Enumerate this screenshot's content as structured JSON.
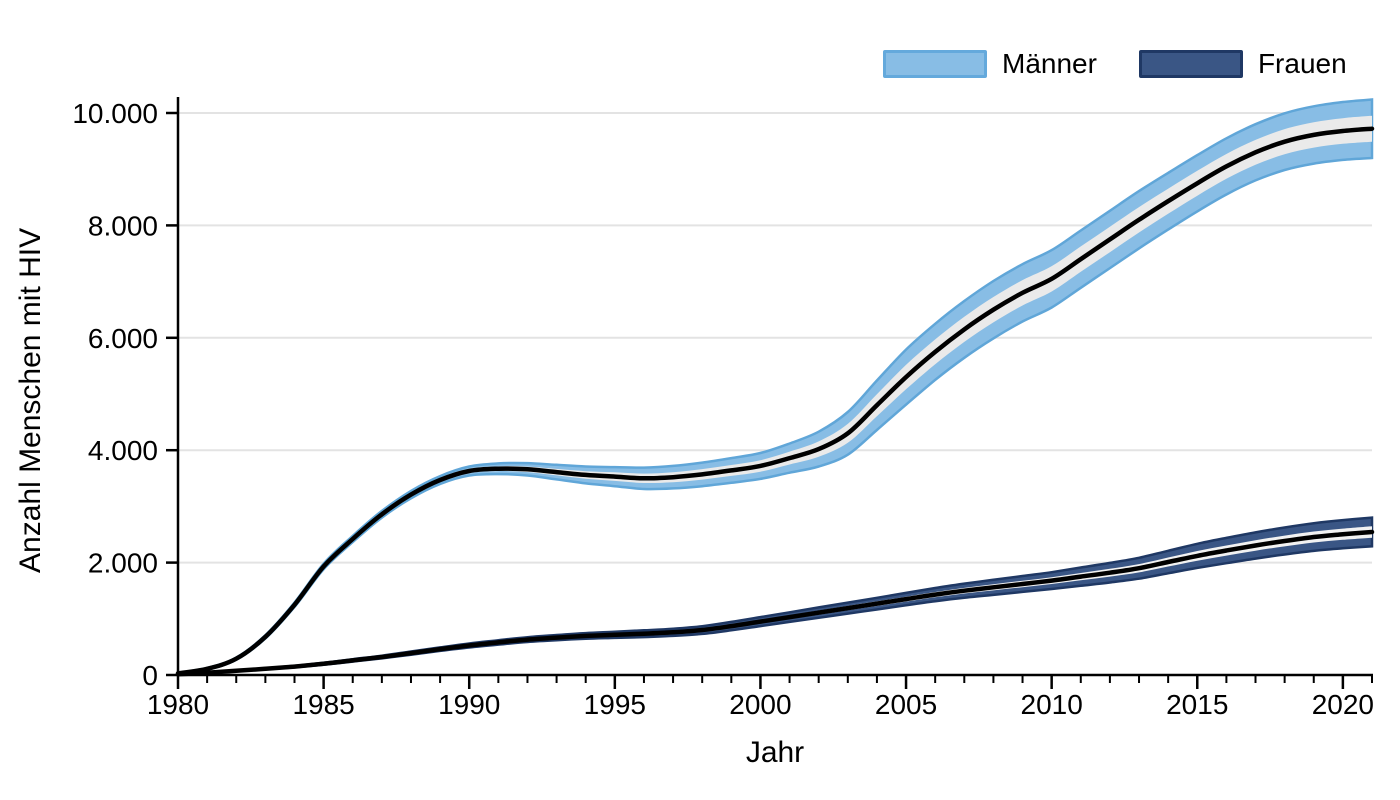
{
  "page": {
    "background": "#FFFFFF",
    "text_color": "#000000",
    "grid_color": "#E3E3E3",
    "axis_color": "#000000"
  },
  "legend": {
    "items": [
      {
        "label": "Männer",
        "fill": "#88BDE5",
        "border": "#64A9DC"
      },
      {
        "label": "Frauen",
        "fill": "#3A5685",
        "border": "#1F3864"
      }
    ]
  },
  "chart_data": {
    "type": "line",
    "title": "",
    "xlabel": "Jahr",
    "ylabel": "Anzahl Menschen mit HIV",
    "xlim": [
      1980,
      2021
    ],
    "ylim": [
      0,
      10000
    ],
    "grid": "horizontal-light",
    "legend_position": "top-right-above-plot",
    "x": [
      1980,
      1981,
      1982,
      1983,
      1984,
      1985,
      1986,
      1987,
      1988,
      1989,
      1990,
      1991,
      1992,
      1993,
      1994,
      1995,
      1996,
      1997,
      1998,
      1999,
      2000,
      2001,
      2002,
      2003,
      2004,
      2005,
      2006,
      2007,
      2008,
      2009,
      2010,
      2011,
      2012,
      2013,
      2014,
      2015,
      2016,
      2017,
      2018,
      2019,
      2020,
      2021
    ],
    "xticks": {
      "major": [
        1980,
        1985,
        1990,
        1995,
        2000,
        2005,
        2010,
        2015,
        2020
      ],
      "major_labels": [
        "1980",
        "1985",
        "1990",
        "1995",
        "2000",
        "2005",
        "2010",
        "2015",
        "2020"
      ],
      "minor_step": 1
    },
    "yticks": {
      "values": [
        0,
        2000,
        4000,
        6000,
        8000,
        10000
      ],
      "labels": [
        "0",
        "2.000",
        "4.000",
        "6.000",
        "8.000",
        "10.000"
      ]
    },
    "series": [
      {
        "name": "Männer",
        "center": [
          30,
          110,
          290,
          680,
          1250,
          1930,
          2420,
          2860,
          3210,
          3470,
          3630,
          3670,
          3660,
          3610,
          3560,
          3530,
          3500,
          3520,
          3570,
          3640,
          3720,
          3860,
          4020,
          4300,
          4800,
          5300,
          5750,
          6150,
          6500,
          6800,
          7050,
          7400,
          7750,
          8100,
          8430,
          8750,
          9050,
          9300,
          9490,
          9610,
          9680,
          9720
        ],
        "ci_outer_halfwidth": [
          10,
          15,
          20,
          30,
          40,
          50,
          55,
          60,
          65,
          70,
          80,
          95,
          110,
          130,
          150,
          170,
          190,
          200,
          210,
          220,
          230,
          260,
          310,
          380,
          440,
          490,
          500,
          505,
          510,
          510,
          510,
          510,
          510,
          510,
          505,
          500,
          500,
          500,
          505,
          510,
          515,
          520
        ],
        "ci_inner_halfwidth": [
          4,
          7,
          9,
          13,
          18,
          22,
          24,
          27,
          29,
          31,
          36,
          42,
          49,
          58,
          67,
          76,
          84,
          89,
          93,
          97,
          102,
          115,
          137,
          168,
          195,
          217,
          221,
          223,
          226,
          226,
          226,
          226,
          226,
          226,
          223,
          221,
          221,
          221,
          223,
          226,
          228,
          230
        ],
        "colors": {
          "band": "#88BDE5",
          "band_edge": "#60A6D8",
          "inner_band": "#EAEAEA",
          "line": "#000000"
        }
      },
      {
        "name": "Frauen",
        "center": [
          15,
          40,
          75,
          110,
          150,
          200,
          260,
          320,
          390,
          460,
          525,
          580,
          630,
          665,
          695,
          715,
          735,
          760,
          800,
          870,
          950,
          1030,
          1110,
          1190,
          1270,
          1350,
          1430,
          1500,
          1560,
          1620,
          1680,
          1750,
          1820,
          1900,
          2010,
          2120,
          2215,
          2305,
          2385,
          2455,
          2505,
          2545
        ],
        "ci_outer_halfwidth": [
          5,
          7,
          9,
          11,
          14,
          18,
          21,
          24,
          28,
          31,
          35,
          39,
          43,
          47,
          51,
          55,
          60,
          64,
          69,
          74,
          80,
          86,
          92,
          98,
          104,
          110,
          118,
          126,
          134,
          142,
          150,
          162,
          174,
          186,
          200,
          215,
          225,
          233,
          240,
          246,
          251,
          255
        ],
        "ci_inner_halfwidth": [
          2,
          3,
          4,
          5,
          6,
          7,
          8,
          10,
          11,
          13,
          14,
          16,
          17,
          19,
          20,
          22,
          24,
          26,
          28,
          30,
          32,
          34,
          37,
          39,
          42,
          44,
          47,
          50,
          54,
          57,
          60,
          65,
          70,
          74,
          80,
          86,
          90,
          93,
          96,
          98,
          100,
          102
        ],
        "colors": {
          "band": "#3A5685",
          "band_edge": "#1F3864",
          "inner_band": "#F2F2F2",
          "line": "#000000"
        }
      }
    ]
  }
}
